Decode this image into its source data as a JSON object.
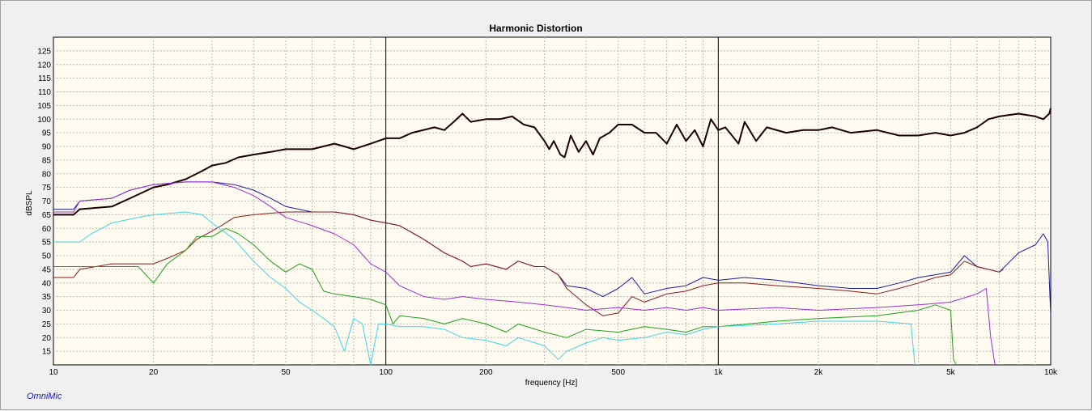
{
  "brand": "OmniMic",
  "chart_data": {
    "type": "line",
    "title": "Harmonic Distortion",
    "xlabel": "frequency [Hz]",
    "ylabel": "dBSPL",
    "xscale": "log",
    "xlim": [
      10,
      10000
    ],
    "ylim": [
      10,
      130
    ],
    "grid": true,
    "x_ticks": [
      {
        "value": 10,
        "label": "10"
      },
      {
        "value": 20,
        "label": "20"
      },
      {
        "value": 50,
        "label": "50"
      },
      {
        "value": 100,
        "label": "100"
      },
      {
        "value": 200,
        "label": "200"
      },
      {
        "value": 500,
        "label": "500"
      },
      {
        "value": 1000,
        "label": "1k"
      },
      {
        "value": 2000,
        "label": "2k"
      },
      {
        "value": 5000,
        "label": "5k"
      },
      {
        "value": 10000,
        "label": "10k"
      }
    ],
    "y_ticks": [
      15,
      20,
      25,
      30,
      35,
      40,
      45,
      50,
      55,
      60,
      65,
      70,
      75,
      80,
      85,
      90,
      95,
      100,
      105,
      110,
      115,
      120,
      125
    ],
    "series": [
      {
        "color": "#1a0000",
        "width": 2,
        "points": [
          [
            10,
            65
          ],
          [
            11.5,
            65
          ],
          [
            12,
            67
          ],
          [
            15,
            68
          ],
          [
            17,
            71
          ],
          [
            20,
            75
          ],
          [
            22,
            76
          ],
          [
            25,
            78
          ],
          [
            28,
            81
          ],
          [
            30,
            83
          ],
          [
            33,
            84
          ],
          [
            36,
            86
          ],
          [
            40,
            87
          ],
          [
            45,
            88
          ],
          [
            50,
            89
          ],
          [
            60,
            89
          ],
          [
            70,
            91
          ],
          [
            75,
            90
          ],
          [
            80,
            89
          ],
          [
            90,
            91
          ],
          [
            100,
            93
          ],
          [
            110,
            93
          ],
          [
            120,
            95
          ],
          [
            140,
            97
          ],
          [
            150,
            96
          ],
          [
            160,
            99
          ],
          [
            170,
            102
          ],
          [
            180,
            99
          ],
          [
            200,
            100
          ],
          [
            220,
            100
          ],
          [
            240,
            101
          ],
          [
            260,
            98
          ],
          [
            280,
            97
          ],
          [
            300,
            92
          ],
          [
            310,
            89
          ],
          [
            320,
            92
          ],
          [
            335,
            87
          ],
          [
            345,
            86
          ],
          [
            360,
            94
          ],
          [
            380,
            88
          ],
          [
            400,
            92
          ],
          [
            420,
            87
          ],
          [
            440,
            93
          ],
          [
            470,
            95
          ],
          [
            500,
            98
          ],
          [
            550,
            98
          ],
          [
            600,
            95
          ],
          [
            650,
            95
          ],
          [
            700,
            91
          ],
          [
            750,
            98
          ],
          [
            800,
            92
          ],
          [
            850,
            96
          ],
          [
            900,
            90
          ],
          [
            950,
            100
          ],
          [
            1000,
            96
          ],
          [
            1050,
            97
          ],
          [
            1100,
            94
          ],
          [
            1150,
            91
          ],
          [
            1200,
            99
          ],
          [
            1300,
            92
          ],
          [
            1400,
            97
          ],
          [
            1600,
            95
          ],
          [
            1800,
            96
          ],
          [
            2000,
            96
          ],
          [
            2200,
            97
          ],
          [
            2500,
            95
          ],
          [
            3000,
            96
          ],
          [
            3500,
            94
          ],
          [
            4000,
            94
          ],
          [
            4500,
            95
          ],
          [
            5000,
            94
          ],
          [
            5500,
            95
          ],
          [
            6000,
            97
          ],
          [
            6500,
            100
          ],
          [
            7000,
            101
          ],
          [
            8000,
            102
          ],
          [
            9000,
            101
          ],
          [
            9500,
            100
          ],
          [
            9900,
            102
          ],
          [
            10000,
            104
          ]
        ]
      },
      {
        "color": "#1a1aa8",
        "width": 1,
        "points": [
          [
            10,
            67
          ],
          [
            11.5,
            67
          ],
          [
            12,
            70
          ],
          [
            15,
            71
          ],
          [
            17,
            74
          ],
          [
            20,
            76
          ],
          [
            25,
            77
          ],
          [
            30,
            77
          ],
          [
            35,
            76
          ],
          [
            40,
            74
          ],
          [
            45,
            71
          ],
          [
            50,
            68
          ],
          [
            60,
            66
          ],
          [
            70,
            66
          ],
          [
            80,
            65
          ],
          [
            90,
            63
          ],
          [
            100,
            62
          ],
          [
            110,
            61
          ],
          [
            130,
            56
          ],
          [
            150,
            51
          ],
          [
            170,
            48
          ],
          [
            180,
            46
          ],
          [
            200,
            47
          ],
          [
            230,
            45
          ],
          [
            250,
            48
          ],
          [
            280,
            46
          ],
          [
            300,
            46
          ],
          [
            330,
            43
          ],
          [
            350,
            39
          ],
          [
            400,
            38
          ],
          [
            450,
            35
          ],
          [
            500,
            38
          ],
          [
            550,
            42
          ],
          [
            600,
            36
          ],
          [
            700,
            38
          ],
          [
            800,
            39
          ],
          [
            900,
            42
          ],
          [
            1000,
            41
          ],
          [
            1200,
            42
          ],
          [
            1500,
            41
          ],
          [
            2000,
            39
          ],
          [
            2500,
            38
          ],
          [
            3000,
            38
          ],
          [
            3500,
            40
          ],
          [
            4000,
            42
          ],
          [
            4500,
            43
          ],
          [
            5000,
            44
          ],
          [
            5500,
            50
          ],
          [
            6000,
            46
          ],
          [
            7000,
            44
          ],
          [
            8000,
            51
          ],
          [
            9000,
            54
          ],
          [
            9500,
            58
          ],
          [
            9800,
            55
          ],
          [
            10000,
            28
          ]
        ]
      },
      {
        "color": "#8b1a1a",
        "width": 1,
        "points": [
          [
            10,
            42
          ],
          [
            11.5,
            42
          ],
          [
            12,
            45
          ],
          [
            15,
            47
          ],
          [
            20,
            47
          ],
          [
            22,
            49
          ],
          [
            25,
            52
          ],
          [
            27,
            56
          ],
          [
            30,
            59
          ],
          [
            32,
            61
          ],
          [
            35,
            64
          ],
          [
            40,
            65
          ],
          [
            50,
            66
          ],
          [
            60,
            66
          ],
          [
            70,
            66
          ],
          [
            80,
            65
          ],
          [
            90,
            63
          ],
          [
            100,
            62
          ],
          [
            110,
            61
          ],
          [
            130,
            56
          ],
          [
            150,
            51
          ],
          [
            170,
            48
          ],
          [
            180,
            46
          ],
          [
            200,
            47
          ],
          [
            230,
            45
          ],
          [
            250,
            48
          ],
          [
            280,
            46
          ],
          [
            300,
            46
          ],
          [
            330,
            43
          ],
          [
            350,
            38
          ],
          [
            400,
            32
          ],
          [
            450,
            28
          ],
          [
            500,
            29
          ],
          [
            550,
            35
          ],
          [
            600,
            33
          ],
          [
            700,
            36
          ],
          [
            800,
            37
          ],
          [
            900,
            39
          ],
          [
            1000,
            40
          ],
          [
            1200,
            40
          ],
          [
            1500,
            39
          ],
          [
            2000,
            38
          ],
          [
            2500,
            37
          ],
          [
            3000,
            36
          ],
          [
            3500,
            38
          ],
          [
            4000,
            40
          ],
          [
            4500,
            42
          ],
          [
            5000,
            43
          ],
          [
            5500,
            48
          ],
          [
            6000,
            46
          ],
          [
            7000,
            44
          ],
          [
            7200,
            45
          ]
        ]
      },
      {
        "color": "#9a2ed6",
        "width": 1,
        "points": [
          [
            10,
            66
          ],
          [
            11.5,
            66
          ],
          [
            12,
            70
          ],
          [
            15,
            71
          ],
          [
            17,
            74
          ],
          [
            20,
            76
          ],
          [
            25,
            77
          ],
          [
            30,
            77
          ],
          [
            35,
            75
          ],
          [
            40,
            72
          ],
          [
            45,
            68
          ],
          [
            50,
            64
          ],
          [
            60,
            61
          ],
          [
            70,
            58
          ],
          [
            80,
            54
          ],
          [
            90,
            47
          ],
          [
            100,
            44
          ],
          [
            110,
            39
          ],
          [
            130,
            35
          ],
          [
            150,
            34
          ],
          [
            170,
            35
          ],
          [
            200,
            34
          ],
          [
            250,
            33
          ],
          [
            300,
            32
          ],
          [
            350,
            31
          ],
          [
            400,
            30
          ],
          [
            500,
            31
          ],
          [
            600,
            30
          ],
          [
            700,
            31
          ],
          [
            800,
            30
          ],
          [
            900,
            31
          ],
          [
            1000,
            30
          ],
          [
            1500,
            31
          ],
          [
            2000,
            30
          ],
          [
            3000,
            31
          ],
          [
            4000,
            32
          ],
          [
            5000,
            33
          ],
          [
            6000,
            36
          ],
          [
            6400,
            38
          ],
          [
            6600,
            20
          ],
          [
            6800,
            10
          ]
        ]
      },
      {
        "color": "#1ea01e",
        "width": 1,
        "points": [
          [
            10,
            46
          ],
          [
            12,
            46
          ],
          [
            15,
            46
          ],
          [
            18,
            46
          ],
          [
            20,
            40
          ],
          [
            22,
            47
          ],
          [
            25,
            52
          ],
          [
            27,
            57
          ],
          [
            30,
            57
          ],
          [
            33,
            60
          ],
          [
            36,
            58
          ],
          [
            40,
            54
          ],
          [
            45,
            48
          ],
          [
            50,
            44
          ],
          [
            55,
            47
          ],
          [
            60,
            45
          ],
          [
            65,
            37
          ],
          [
            70,
            36
          ],
          [
            80,
            35
          ],
          [
            90,
            34
          ],
          [
            100,
            32
          ],
          [
            105,
            25
          ],
          [
            110,
            28
          ],
          [
            130,
            27
          ],
          [
            150,
            25
          ],
          [
            170,
            27
          ],
          [
            200,
            25
          ],
          [
            230,
            22
          ],
          [
            250,
            25
          ],
          [
            300,
            22
          ],
          [
            350,
            20
          ],
          [
            400,
            23
          ],
          [
            500,
            22
          ],
          [
            600,
            24
          ],
          [
            700,
            23
          ],
          [
            800,
            22
          ],
          [
            900,
            24
          ],
          [
            1000,
            24
          ],
          [
            1500,
            26
          ],
          [
            2000,
            27
          ],
          [
            3000,
            28
          ],
          [
            4000,
            30
          ],
          [
            4500,
            32
          ],
          [
            5000,
            30
          ],
          [
            5100,
            12
          ],
          [
            5200,
            10
          ]
        ]
      },
      {
        "color": "#3ed6e6",
        "width": 1,
        "points": [
          [
            10,
            55
          ],
          [
            12,
            55
          ],
          [
            13,
            58
          ],
          [
            15,
            62
          ],
          [
            18,
            64
          ],
          [
            20,
            65
          ],
          [
            25,
            66
          ],
          [
            28,
            65
          ],
          [
            30,
            62
          ],
          [
            35,
            56
          ],
          [
            40,
            48
          ],
          [
            45,
            42
          ],
          [
            50,
            38
          ],
          [
            55,
            33
          ],
          [
            60,
            30
          ],
          [
            65,
            27
          ],
          [
            70,
            24
          ],
          [
            75,
            15
          ],
          [
            80,
            27
          ],
          [
            85,
            25
          ],
          [
            90,
            10
          ],
          [
            95,
            25
          ],
          [
            100,
            25
          ],
          [
            110,
            24
          ],
          [
            130,
            24
          ],
          [
            150,
            23
          ],
          [
            170,
            20
          ],
          [
            200,
            19
          ],
          [
            230,
            17
          ],
          [
            250,
            20
          ],
          [
            300,
            17
          ],
          [
            330,
            12
          ],
          [
            350,
            15
          ],
          [
            400,
            18
          ],
          [
            450,
            20
          ],
          [
            500,
            19
          ],
          [
            600,
            20
          ],
          [
            700,
            22
          ],
          [
            800,
            21
          ],
          [
            900,
            23
          ],
          [
            1000,
            24
          ],
          [
            1500,
            25
          ],
          [
            2000,
            26
          ],
          [
            3000,
            26
          ],
          [
            3800,
            25
          ],
          [
            3900,
            10
          ]
        ]
      }
    ]
  }
}
